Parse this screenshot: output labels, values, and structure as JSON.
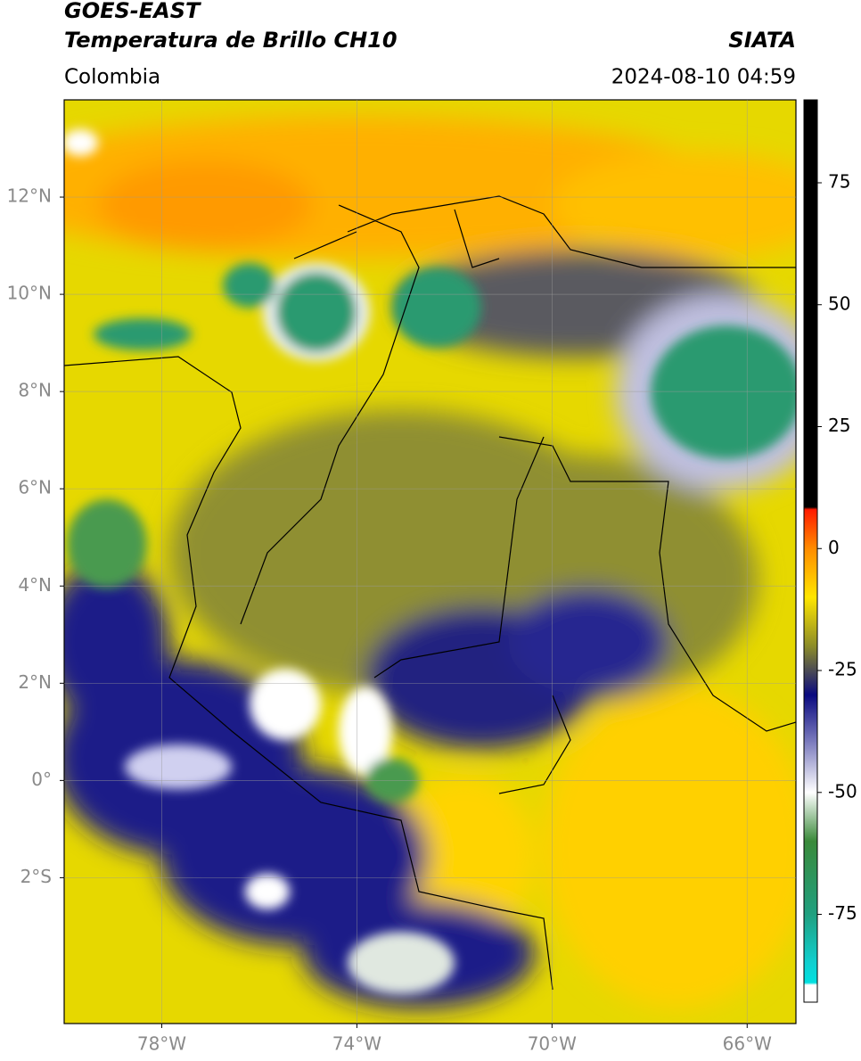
{
  "header": {
    "title": "GOES-EAST",
    "subtitle": "Temperatura de Brillo CH10",
    "source": "SIATA",
    "region": "Colombia",
    "timestamp": "2024-08-10 04:59"
  },
  "map": {
    "type": "map",
    "xlim": [
      -80,
      -65
    ],
    "ylim": [
      -5,
      14
    ],
    "xticks": [
      {
        "value": -78,
        "label": "78°W"
      },
      {
        "value": -74,
        "label": "74°W"
      },
      {
        "value": -70,
        "label": "70°W"
      },
      {
        "value": -66,
        "label": "66°W"
      }
    ],
    "yticks": [
      {
        "value": 12,
        "label": "12°N"
      },
      {
        "value": 10,
        "label": "10°N"
      },
      {
        "value": 8,
        "label": "8°N"
      },
      {
        "value": 6,
        "label": "6°N"
      },
      {
        "value": 4,
        "label": "4°N"
      },
      {
        "value": 2,
        "label": "2°N"
      },
      {
        "value": 0,
        "label": "0°"
      },
      {
        "value": -2,
        "label": "2°S"
      }
    ],
    "grid": true
  },
  "colorbar": {
    "lim": [
      -93,
      92
    ],
    "ticks": [
      75,
      50,
      25,
      0,
      -25,
      -50,
      -75
    ],
    "stops": [
      {
        "value": 92,
        "color": "#000000"
      },
      {
        "value": 8.5,
        "color": "#000000"
      },
      {
        "value": 8,
        "color": "#ff1a00"
      },
      {
        "value": 0,
        "color": "#ff8c00"
      },
      {
        "value": -10,
        "color": "#ffe600"
      },
      {
        "value": -20,
        "color": "#8c8c28"
      },
      {
        "value": -30,
        "color": "#0a0a80"
      },
      {
        "value": -40,
        "color": "#8080c0"
      },
      {
        "value": -50,
        "color": "#ffffff"
      },
      {
        "value": -60,
        "color": "#3a8a3a"
      },
      {
        "value": -75,
        "color": "#20a080"
      },
      {
        "value": -85,
        "color": "#10d0d0"
      },
      {
        "value": -89,
        "color": "#00e0e0"
      },
      {
        "value": -89.5,
        "color": "#ffffff"
      },
      {
        "value": -93,
        "color": "#ffffff"
      }
    ]
  }
}
